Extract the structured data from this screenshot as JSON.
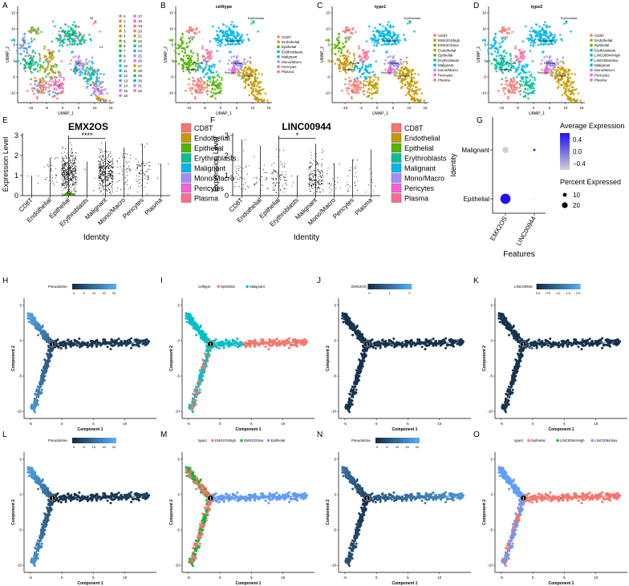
{
  "palette": {
    "CD8T": "#f8766d",
    "Endothelial": "#c49a00",
    "Epithelial": "#53b400",
    "Erythroblasts": "#00c094",
    "Malignant": "#00b6eb",
    "MonoMacro": "#a58aff",
    "Pericytes": "#fb61d7",
    "Plasma": "#ff6c91",
    "EMX2OShigh": "#c49a00",
    "EMX2OSlow": "#53b400",
    "LINChigh": "#00c094",
    "LINClow": "#00b6eb",
    "pt_dark": "#132b43",
    "pt_light": "#56b1f7",
    "expr_low": "#d0d0d0",
    "expr_high": "#1e10f0",
    "traj_epi": "#f8766d",
    "traj_mal": "#00bfc4",
    "m_high": "#f8766d",
    "m_low": "#00ba38",
    "m_epi": "#619cff",
    "o_epi": "#f8766d",
    "o_high": "#00ba38",
    "o_low": "#619cff"
  },
  "panel_letters": [
    "A",
    "B",
    "C",
    "D",
    "E",
    "F",
    "G",
    "H",
    "I",
    "J",
    "K",
    "L",
    "M",
    "N",
    "O"
  ],
  "umap": {
    "xlabel": "UMAP_1",
    "ylabel": "UMAP_2",
    "xticks": [
      "-10",
      "-5",
      "0",
      "5",
      "10",
      "15"
    ],
    "yticks": [
      "15",
      "10",
      "5",
      "0",
      "-5",
      "-10"
    ],
    "panels": [
      {
        "title": "",
        "legend": [
          "0",
          "1",
          "2",
          "3",
          "4",
          "5",
          "6",
          "7",
          "8",
          "9",
          "10",
          "11",
          "12",
          "13",
          "14",
          "15",
          "16",
          "17",
          "18",
          "19",
          "20",
          "21",
          "22",
          "23",
          "24",
          "25",
          "26",
          "27",
          "28",
          "29",
          "30",
          "31",
          "32"
        ]
      },
      {
        "title": "celltype",
        "legend": [
          "CD8T",
          "Endothelial",
          "Epithelial",
          "Erythroblasts",
          "Malignant",
          "Mono/Macro",
          "Pericytes",
          "Plasma"
        ]
      },
      {
        "title": "type1",
        "legend": [
          "CD8T",
          "EMX2OShigh",
          "EMX2OSlow",
          "Endothelial",
          "Epithelial",
          "Erythroblasts",
          "Malignant",
          "Mono/Macro",
          "Pericytes",
          "Plasma"
        ]
      },
      {
        "title": "type2",
        "legend": [
          "CD8T",
          "Endothelial",
          "Epithelial",
          "Erythroblasts",
          "LINC00944High",
          "LINC00944low",
          "Malignant",
          "Mono/Macro",
          "Pericytes",
          "Plasma"
        ]
      }
    ]
  },
  "violin": {
    "ylabel": "Expression Level",
    "xlabel": "Identity",
    "categories": [
      "CD8T",
      "Endothelial",
      "Epithelial",
      "Erythroblasts",
      "Malignant",
      "Mono/Macro",
      "Pericytes",
      "Plasma"
    ],
    "legend": [
      "CD8T",
      "Endothelial",
      "Epithelial",
      "Erythroblasts",
      "Malignant",
      "Mono/Macro",
      "Pericytes",
      "Plasma"
    ],
    "panels": [
      {
        "title": "EMX2OS",
        "yticks": [
          "0",
          "1",
          "2",
          "3"
        ],
        "signif": "****"
      },
      {
        "title": "LINC00944",
        "yticks": [
          "0",
          "1",
          "2",
          "3"
        ],
        "signif": "*"
      }
    ]
  },
  "dotplot": {
    "ylabel": "Identity",
    "xlabel": "Features",
    "rows": [
      "Malignant",
      "Epithelial"
    ],
    "cols": [
      "EMX2OS",
      "LINC00944"
    ],
    "legend_avg_title": "Average Expression",
    "legend_avg_ticks": [
      "0.4",
      "0.0",
      "−0.4"
    ],
    "legend_pct_title": "Percent Expressed",
    "legend_pct_ticks": [
      "10",
      "20"
    ]
  },
  "traj": {
    "xlabel": "Component 1",
    "ylabel": "Component 2",
    "xticks": [
      "-5",
      "0",
      "5",
      "10"
    ],
    "yticks": [
      "5",
      "0",
      "-5",
      "-10"
    ],
    "branch_label": "1",
    "panels": [
      {
        "legend_title": "Pseudotime",
        "legend_ticks": [
          "0",
          "5",
          "10",
          "15",
          "20"
        ]
      },
      {
        "legend_title": "celltype",
        "legend_items": [
          "Epithelial",
          "Malignant"
        ]
      },
      {
        "legend_title": "EMX2OS",
        "legend_ticks": [
          "0",
          "1",
          "2"
        ]
      },
      {
        "legend_title": "LINC00944",
        "legend_ticks": [
          "0.0",
          "0.5",
          "1.0",
          "1.5",
          "2.0"
        ]
      },
      {
        "legend_title": "Pseudotime",
        "legend_ticks": [
          "0",
          "5",
          "10",
          "15",
          "20"
        ]
      },
      {
        "legend_title": "type1",
        "legend_items": [
          "EMX2OShigh",
          "EMX2OSlow",
          "Epithelial"
        ]
      },
      {
        "legend_title": "Pseudotime",
        "legend_ticks": [
          "0",
          "5",
          "10",
          "15",
          "20"
        ]
      },
      {
        "legend_title": "type2",
        "legend_items": [
          "Epithelial",
          "LINC00944High",
          "LINC00944low"
        ]
      }
    ]
  },
  "chart_data": [
    {
      "type": "scatter",
      "panel": "A",
      "subtype": "umap",
      "title": "",
      "xlabel": "UMAP_1",
      "ylabel": "UMAP_2",
      "xlim": [
        -14,
        16
      ],
      "ylim": [
        -13,
        17
      ],
      "legend": "clusters 0-32"
    },
    {
      "type": "scatter",
      "panel": "B",
      "subtype": "umap",
      "title": "celltype",
      "xlabel": "UMAP_1",
      "ylabel": "UMAP_2",
      "clusters": [
        {
          "name": "CD8T",
          "x": -7,
          "y": -7
        },
        {
          "name": "Endothelial",
          "x": 9,
          "y": -5
        },
        {
          "name": "Epithelial",
          "x": -10,
          "y": -1
        },
        {
          "name": "Erythroblasts",
          "x": 10,
          "y": 12
        },
        {
          "name": "Malignant",
          "x": 3,
          "y": 7
        },
        {
          "name": "Mono/Macro",
          "x": 5,
          "y": -1
        },
        {
          "name": "Pericytes",
          "x": 4,
          "y": -3
        },
        {
          "name": "Plasma",
          "x": -4,
          "y": 1
        }
      ]
    },
    {
      "type": "violin",
      "panel": "E",
      "title": "EMX2OS",
      "ylabel": "Expression Level",
      "xlabel": "Identity",
      "ylim": [
        0,
        3
      ],
      "categories": [
        "CD8T",
        "Endothelial",
        "Epithelial",
        "Erythroblasts",
        "Malignant",
        "Mono/Macro",
        "Pericytes",
        "Plasma"
      ],
      "max_values": [
        1.0,
        1.9,
        3.0,
        1.7,
        2.7,
        2.4,
        2.6,
        1.6
      ],
      "annotation": "****"
    },
    {
      "type": "violin",
      "panel": "F",
      "title": "LINC00944",
      "ylabel": "Expression Level",
      "xlabel": "Identity",
      "ylim": [
        0,
        3
      ],
      "categories": [
        "CD8T",
        "Endothelial",
        "Epithelial",
        "Erythroblasts",
        "Malignant",
        "Mono/Macro",
        "Pericytes",
        "Plasma"
      ],
      "max_values": [
        2.8,
        2.5,
        3.0,
        1.0,
        2.6,
        1.6,
        1.8,
        2.3
      ],
      "annotation": "*"
    },
    {
      "type": "scatter",
      "panel": "G",
      "subtype": "dotplot",
      "rows": [
        "Malignant",
        "Epithelial"
      ],
      "cols": [
        "EMX2OS",
        "LINC00944"
      ],
      "points": [
        {
          "row": "Malignant",
          "col": "EMX2OS",
          "avg_expr": -0.7,
          "pct": 8
        },
        {
          "row": "Malignant",
          "col": "LINC00944",
          "avg_expr": 0.7,
          "pct": 1
        },
        {
          "row": "Epithelial",
          "col": "EMX2OS",
          "avg_expr": 0.7,
          "pct": 22
        },
        {
          "row": "Epithelial",
          "col": "LINC00944",
          "avg_expr": -0.7,
          "pct": 0.2
        }
      ]
    },
    {
      "type": "scatter",
      "panel": "H-O",
      "subtype": "trajectory",
      "xlabel": "Component 1",
      "ylabel": "Component 2",
      "xlim": [
        -6,
        15
      ],
      "ylim": [
        -11,
        6
      ],
      "branches": [
        {
          "name": "upper-left",
          "from": [
            -1.5,
            -0.5
          ],
          "to": [
            -5.3,
            3.6
          ]
        },
        {
          "name": "right",
          "from": [
            -1.5,
            -0.5
          ],
          "to": [
            13.5,
            -0.2
          ]
        },
        {
          "name": "lower-left",
          "from": [
            -1.5,
            -0.5
          ],
          "to": [
            -4.6,
            -9.8
          ]
        }
      ],
      "branch_point": [
        -1.5,
        -0.5
      ]
    }
  ]
}
